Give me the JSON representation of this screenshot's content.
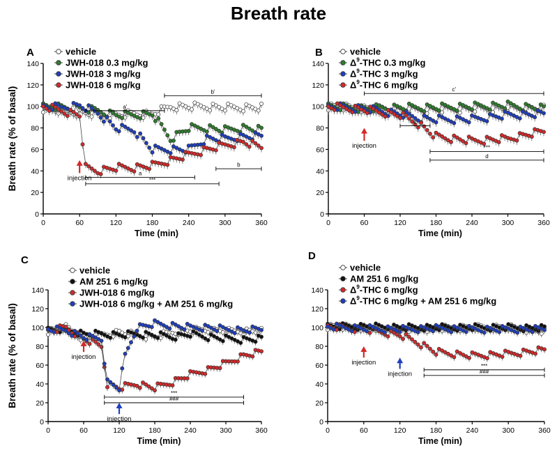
{
  "figure_title": "Breath rate",
  "colors": {
    "vehicle": "#ffffff",
    "green": "#2e7d2e",
    "blue": "#1f3fbf",
    "red": "#d42a2a",
    "black": "#111111"
  },
  "chart_data": [
    {
      "panel": "A",
      "type": "line",
      "xlabel": "Time (min)",
      "ylabel": "Breath rate (% of basal)",
      "xlim": [
        0,
        360
      ],
      "ylim": [
        0,
        140
      ],
      "xticks": [
        0,
        60,
        120,
        180,
        240,
        300,
        360
      ],
      "yticks": [
        0,
        20,
        40,
        60,
        80,
        100,
        120,
        140
      ],
      "legend": "top-left",
      "series": [
        {
          "name": "vehicle",
          "color": "#ffffff",
          "x": [
            0,
            30,
            60,
            90,
            120,
            150,
            180,
            210,
            240,
            270,
            300,
            330,
            360
          ],
          "y": [
            98,
            96,
            94,
            93,
            92,
            93,
            93,
            100,
            100,
            100,
            99,
            99,
            99
          ]
        },
        {
          "name": "JWH-018 0.3 mg/kg",
          "color": "#2e7d2e",
          "x": [
            0,
            30,
            60,
            90,
            120,
            150,
            180,
            210,
            240,
            270,
            300,
            330,
            360
          ],
          "y": [
            100,
            99,
            98,
            96,
            92,
            92,
            93,
            70,
            80,
            80,
            78,
            80,
            78
          ]
        },
        {
          "name": "JWH-018 3 mg/kg",
          "color": "#1f3fbf",
          "x": [
            0,
            30,
            60,
            90,
            120,
            150,
            180,
            210,
            240,
            270,
            300,
            330,
            360
          ],
          "y": [
            100,
            99,
            101,
            94,
            80,
            78,
            60,
            60,
            60,
            70,
            70,
            72,
            72
          ]
        },
        {
          "name": "JWH-018 6 mg/kg",
          "color": "#d42a2a",
          "x": [
            0,
            30,
            60,
            70,
            90,
            120,
            150,
            180,
            210,
            240,
            270,
            300,
            330,
            360
          ],
          "y": [
            100,
            96,
            92,
            43,
            40,
            43,
            43,
            45,
            50,
            55,
            60,
            64,
            67,
            62
          ]
        }
      ],
      "annotations": [
        {
          "text": "injection",
          "x": 60,
          "y": 32,
          "arrow_color": "#d42a2a"
        },
        {
          "text": "a'",
          "x1": 70,
          "x2": 200,
          "y": 96
        },
        {
          "text": "b'",
          "x1": 200,
          "x2": 360,
          "y": 110
        },
        {
          "text": "a",
          "x1": 70,
          "x2": 250,
          "y": 34
        },
        {
          "text": "***",
          "x1": 70,
          "x2": 290,
          "y": 28
        },
        {
          "text": "b",
          "x1": 285,
          "x2": 360,
          "y": 42
        }
      ]
    },
    {
      "panel": "B",
      "type": "line",
      "xlabel": "Time (min)",
      "ylabel": "",
      "xlim": [
        0,
        360
      ],
      "ylim": [
        0,
        140
      ],
      "xticks": [
        0,
        60,
        120,
        180,
        240,
        300,
        360
      ],
      "yticks": [
        0,
        20,
        40,
        60,
        80,
        100,
        120,
        140
      ],
      "legend": "top-left",
      "series": [
        {
          "name": "vehicle",
          "color": "#ffffff",
          "x": [
            0,
            60,
            120,
            180,
            240,
            300,
            360
          ],
          "y": [
            100,
            98,
            97,
            97,
            98,
            98,
            98
          ]
        },
        {
          "name": "Δ9-THC 0.3 mg/kg",
          "color": "#2e7d2e",
          "x": [
            0,
            60,
            120,
            180,
            240,
            300,
            360
          ],
          "y": [
            100,
            98,
            99,
            99,
            100,
            101,
            98
          ]
        },
        {
          "name": "Δ9-THC 3 mg/kg",
          "color": "#1f3fbf",
          "x": [
            0,
            60,
            120,
            150,
            180,
            240,
            300,
            360
          ],
          "y": [
            100,
            98,
            93,
            89,
            88,
            88,
            92,
            93
          ]
        },
        {
          "name": "Δ9-THC 6 mg/kg",
          "color": "#d42a2a",
          "x": [
            0,
            60,
            120,
            150,
            180,
            240,
            300,
            360
          ],
          "y": [
            100,
            97,
            92,
            84,
            72,
            68,
            70,
            77
          ]
        }
      ],
      "annotations": [
        {
          "text": "injection",
          "x": 60,
          "y": 62,
          "arrow_color": "#d42a2a"
        },
        {
          "text": "c'",
          "x1": 60,
          "x2": 360,
          "y": 112
        },
        {
          "text": "c",
          "x1": 120,
          "x2": 170,
          "y": 82
        },
        {
          "text": "***",
          "x1": 170,
          "x2": 360,
          "y": 58
        },
        {
          "text": "d",
          "x1": 170,
          "x2": 360,
          "y": 50
        }
      ]
    },
    {
      "panel": "C",
      "type": "line",
      "xlabel": "Time (min)",
      "ylabel": "Breath rate (% of basal)",
      "xlim": [
        0,
        360
      ],
      "ylim": [
        0,
        140
      ],
      "xticks": [
        0,
        60,
        120,
        180,
        240,
        300,
        360
      ],
      "yticks": [
        0,
        20,
        40,
        60,
        80,
        100,
        120,
        140
      ],
      "legend": "top",
      "series": [
        {
          "name": "vehicle",
          "color": "#ffffff",
          "x": [
            0,
            30,
            60,
            90,
            120,
            150,
            180,
            210,
            240,
            270,
            300,
            330,
            360
          ],
          "y": [
            96,
            100,
            88,
            92,
            95,
            92,
            90,
            95,
            97,
            97,
            96,
            96,
            96
          ]
        },
        {
          "name": "AM 251 6 mg/kg",
          "color": "#111111",
          "x": [
            0,
            30,
            60,
            90,
            120,
            150,
            180,
            210,
            240,
            270,
            300,
            330,
            360
          ],
          "y": [
            97,
            98,
            93,
            93,
            92,
            93,
            92,
            90,
            93,
            90,
            88,
            87,
            88
          ]
        },
        {
          "name": "JWH-018 6 mg/kg",
          "color": "#d42a2a",
          "x": [
            0,
            30,
            60,
            90,
            100,
            120,
            150,
            180,
            210,
            240,
            270,
            300,
            330,
            360
          ],
          "y": [
            96,
            100,
            88,
            80,
            40,
            36,
            40,
            36,
            42,
            50,
            55,
            62,
            70,
            74
          ]
        },
        {
          "name": "JWH-018 6 mg/kg + AM 251 6 mg/kg",
          "color": "#1f3fbf",
          "x": [
            0,
            30,
            60,
            90,
            100,
            120,
            130,
            150,
            180,
            210,
            240,
            270,
            300,
            330,
            360
          ],
          "y": [
            98,
            97,
            90,
            88,
            42,
            36,
            70,
            100,
            104,
            102,
            100,
            100,
            98,
            97,
            98
          ]
        }
      ],
      "annotations": [
        {
          "text": "injection",
          "x": 60,
          "y": 68,
          "arrow_color": "#d42a2a"
        },
        {
          "text": "injection",
          "x": 120,
          "y": 2,
          "arrow_color": "#1f3fbf"
        },
        {
          "text": "***",
          "x1": 95,
          "x2": 330,
          "y": 26
        },
        {
          "text": "###",
          "x1": 95,
          "x2": 330,
          "y": 20
        }
      ]
    },
    {
      "panel": "D",
      "type": "line",
      "xlabel": "Time (min)",
      "ylabel": "",
      "xlim": [
        0,
        360
      ],
      "ylim": [
        0,
        140
      ],
      "xticks": [
        0,
        60,
        120,
        180,
        240,
        300,
        360
      ],
      "yticks": [
        0,
        20,
        40,
        60,
        80,
        100,
        120,
        140
      ],
      "legend": "top",
      "series": [
        {
          "name": "vehicle",
          "color": "#ffffff",
          "x": [
            0,
            60,
            120,
            180,
            240,
            300,
            360
          ],
          "y": [
            101,
            100,
            98,
            99,
            100,
            100,
            96
          ]
        },
        {
          "name": "AM 251 6 mg/kg",
          "color": "#111111",
          "x": [
            0,
            60,
            120,
            180,
            240,
            300,
            360
          ],
          "y": [
            101,
            101,
            100,
            100,
            100,
            100,
            99
          ]
        },
        {
          "name": "Δ9-THC 6 mg/kg",
          "color": "#d42a2a",
          "x": [
            0,
            60,
            120,
            150,
            180,
            240,
            300,
            360
          ],
          "y": [
            101,
            98,
            92,
            84,
            74,
            70,
            72,
            76
          ]
        },
        {
          "name": "Δ9-THC 6 mg/kg + AM 251 6 mg/kg",
          "color": "#1f3fbf",
          "x": [
            0,
            60,
            120,
            180,
            240,
            300,
            360
          ],
          "y": [
            101,
            99,
            98,
            99,
            98,
            98,
            98
          ]
        }
      ],
      "annotations": [
        {
          "text": "injection",
          "x": 60,
          "y": 62,
          "arrow_color": "#d42a2a"
        },
        {
          "text": "injection",
          "x": 120,
          "y": 50,
          "arrow_color": "#1f3fbf"
        },
        {
          "text": "***",
          "x1": 160,
          "x2": 360,
          "y": 55
        },
        {
          "text": "###",
          "x1": 160,
          "x2": 360,
          "y": 49
        }
      ]
    }
  ]
}
